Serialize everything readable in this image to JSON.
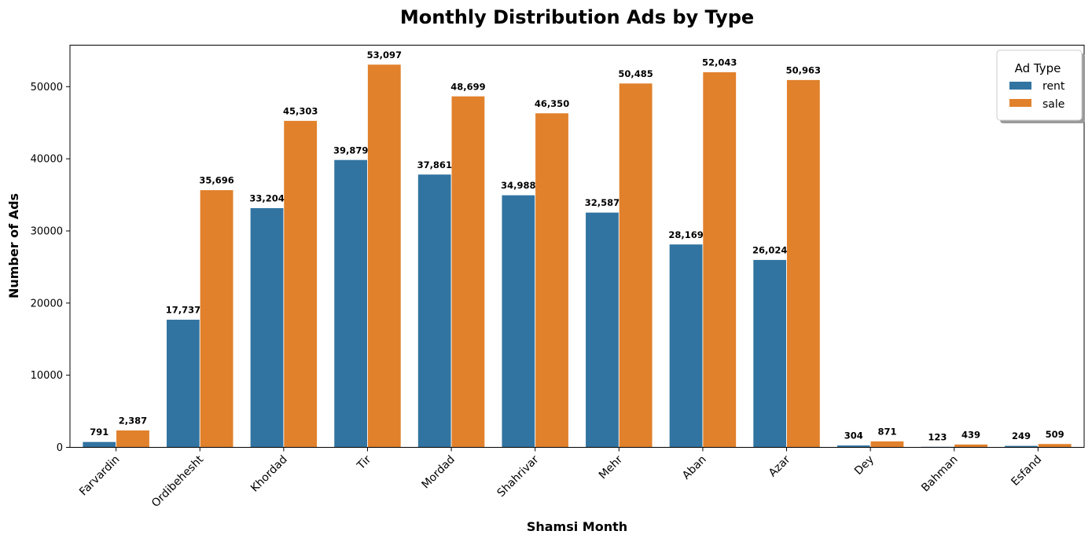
{
  "chart_data": {
    "type": "bar",
    "title": "Monthly Distribution  Ads by Type",
    "xlabel": "Shamsi Month",
    "ylabel": "Number of Ads",
    "categories": [
      "Farvardin",
      "Ordibehesht",
      "Khordad",
      "Tir",
      "Mordad",
      "Shahrivar",
      "Mehr",
      "Aban",
      "Azar",
      "Dey",
      "Bahman",
      "Esfand"
    ],
    "series": [
      {
        "name": "rent",
        "color": "#3274a1",
        "values": [
          791,
          17737,
          33204,
          39879,
          37861,
          34988,
          32587,
          28169,
          26024,
          304,
          123,
          249
        ],
        "labels": [
          "791",
          "17,737",
          "33,204",
          "39,879",
          "37,861",
          "34,988",
          "32,587",
          "28,169",
          "26,024",
          "304",
          "123",
          "249"
        ]
      },
      {
        "name": "sale",
        "color": "#e1812c",
        "values": [
          2387,
          35696,
          45303,
          53097,
          48699,
          46350,
          50485,
          52043,
          50963,
          871,
          439,
          509
        ],
        "labels": [
          "2,387",
          "35,696",
          "45,303",
          "53,097",
          "48,699",
          "46,350",
          "50,485",
          "52,043",
          "50,963",
          "871",
          "439",
          "509"
        ]
      }
    ],
    "yticks": [
      0,
      10000,
      20000,
      30000,
      40000,
      50000
    ],
    "ytick_labels": [
      "0",
      "10000",
      "20000",
      "30000",
      "40000",
      "50000"
    ],
    "ylim": [
      0,
      55752
    ],
    "grid": false,
    "legend": {
      "title": "Ad Type",
      "placement": "top-right"
    }
  }
}
